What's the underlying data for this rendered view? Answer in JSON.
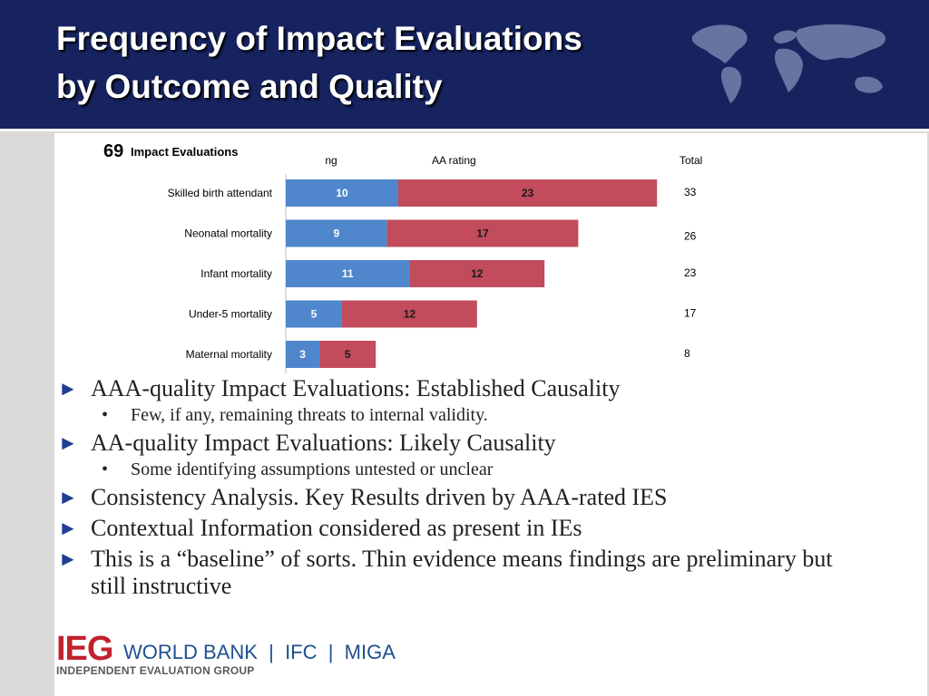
{
  "slide": {
    "title_line1": "Frequency of Impact Evaluations",
    "title_line2": "by Outcome and Quality",
    "chart_count": "69",
    "chart_count_label": "Impact Evaluations"
  },
  "colors": {
    "header_bg": "#16235f",
    "aaa_color": "#4f86cc",
    "aa_color": "#c24b5c"
  },
  "chart_data": {
    "type": "bar",
    "orientation": "horizontal",
    "stacked": true,
    "categories": [
      "Skilled birth attendant",
      "Neonatal mortality",
      "Infant mortality",
      "Under-5 mortality",
      "Maternal mortality"
    ],
    "series": [
      {
        "name": "AAA rating",
        "values": [
          10,
          9,
          11,
          5,
          3
        ],
        "color": "#4f86cc"
      },
      {
        "name": "AA rating",
        "values": [
          23,
          17,
          12,
          12,
          5
        ],
        "color": "#c24b5c"
      }
    ],
    "totals_label": "Total",
    "totals": [
      33,
      26,
      23,
      17,
      8
    ],
    "xlim": [
      0,
      35
    ]
  },
  "bullets": [
    {
      "text": "AAA-quality Impact Evaluations: Established Causality",
      "sub": "Few, if any, remaining threats to internal validity."
    },
    {
      "text": "AA-quality Impact Evaluations: Likely Causality",
      "sub": "Some identifying assumptions untested or unclear"
    },
    {
      "text": "Consistency Analysis. Key Results driven by AAA-rated IES",
      "sub": ""
    },
    {
      "text": "Contextual Information considered as present in IEs",
      "sub": ""
    },
    {
      "text": "This is a “baseline” of sorts. Thin evidence means findings are preliminary but still instructive",
      "sub": ""
    }
  ],
  "footer": {
    "logo_ieg": "IEG",
    "logo_orgs": "WORLD BANK  |  IFC  |  MIGA",
    "logo_sub": "INDEPENDENT EVALUATION GROUP"
  }
}
